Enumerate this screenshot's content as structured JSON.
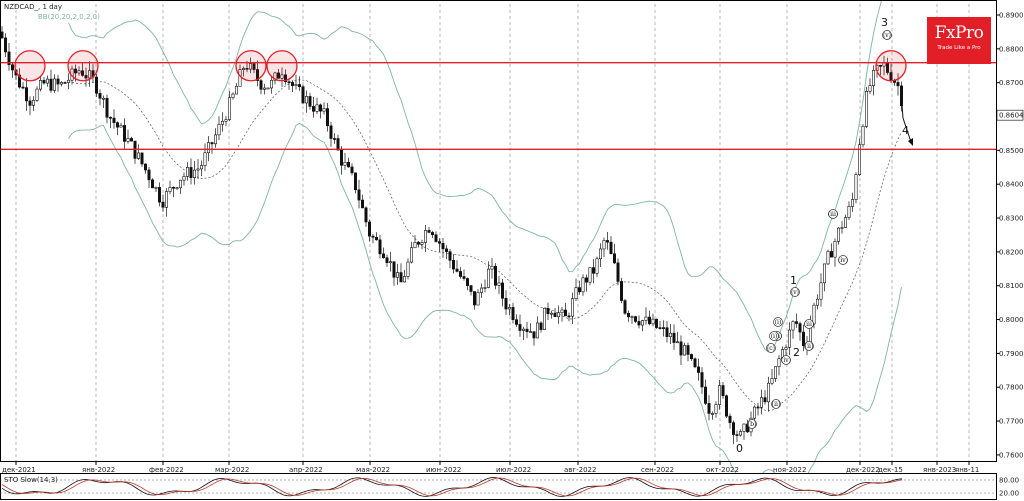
{
  "header": {
    "symbol_label": "NZDCAD_, 1 day",
    "bb_label": "BB(20,20,2,0,2,0)",
    "sto_label": "STO Slow(14,3)"
  },
  "logo": {
    "name": "FxPro",
    "tagline": "Trade Like a Pro",
    "color": "#e21f26"
  },
  "colors": {
    "bull": "#ffffff",
    "bear": "#111111",
    "band": "#7fb3a6",
    "resistance": "#e21f26",
    "ma": "#555555"
  },
  "chart_data": {
    "type": "candlestick",
    "ylim": [
      0.757,
      0.894
    ],
    "price_ticks": [
      "0.8900",
      "0.8800",
      "0.8700",
      "0.8604",
      "0.8500",
      "0.8400",
      "0.8300",
      "0.8200",
      "0.8100",
      "0.8000",
      "0.7900",
      "0.7800",
      "0.7700",
      "0.7600"
    ],
    "current_price": "0.8604",
    "date_labels": [
      "дек-2021",
      "янв-2022",
      "фев-2022",
      "мар-2022",
      "апр-2022",
      "мая-2022",
      "июн-2022",
      "июл-2022",
      "авг-2022",
      "сен-2022",
      "окт-2022",
      "ноя-2022",
      "дек-2022",
      "дек-15",
      "янв-2023",
      "янв-11"
    ],
    "levels": [
      0.8759,
      0.8503
    ],
    "wave_labels": [
      "3",
      "(v)",
      "4",
      "1",
      "(v)",
      "(iv)",
      "(iii)",
      "(i)",
      "2",
      "(iii)",
      "(ii)",
      "(iv)",
      "(iii)",
      "(ii)",
      "(i)",
      "(c)",
      "(b)",
      "0"
    ],
    "sto_ticks": [
      "80.00",
      "20.00"
    ],
    "anchors": [
      [
        0,
        0.885
      ],
      [
        15,
        0.872
      ],
      [
        30,
        0.865
      ],
      [
        45,
        0.87
      ],
      [
        60,
        0.869
      ],
      [
        80,
        0.874
      ],
      [
        95,
        0.87
      ],
      [
        110,
        0.86
      ],
      [
        130,
        0.852
      ],
      [
        150,
        0.842
      ],
      [
        162,
        0.835
      ],
      [
        180,
        0.842
      ],
      [
        200,
        0.845
      ],
      [
        215,
        0.854
      ],
      [
        232,
        0.865
      ],
      [
        245,
        0.876
      ],
      [
        260,
        0.87
      ],
      [
        270,
        0.869
      ],
      [
        282,
        0.874
      ],
      [
        295,
        0.868
      ],
      [
        310,
        0.864
      ],
      [
        325,
        0.86
      ],
      [
        340,
        0.848
      ],
      [
        355,
        0.84
      ],
      [
        370,
        0.825
      ],
      [
        385,
        0.82
      ],
      [
        400,
        0.81
      ],
      [
        415,
        0.822
      ],
      [
        430,
        0.828
      ],
      [
        445,
        0.82
      ],
      [
        460,
        0.813
      ],
      [
        475,
        0.805
      ],
      [
        490,
        0.815
      ],
      [
        505,
        0.805
      ],
      [
        520,
        0.799
      ],
      [
        535,
        0.796
      ],
      [
        550,
        0.804
      ],
      [
        565,
        0.8
      ],
      [
        580,
        0.81
      ],
      [
        595,
        0.815
      ],
      [
        605,
        0.824
      ],
      [
        615,
        0.815
      ],
      [
        625,
        0.803
      ],
      [
        640,
        0.8
      ],
      [
        655,
        0.798
      ],
      [
        670,
        0.795
      ],
      [
        685,
        0.79
      ],
      [
        700,
        0.782
      ],
      [
        710,
        0.773
      ],
      [
        720,
        0.779
      ],
      [
        730,
        0.77
      ],
      [
        740,
        0.765
      ],
      [
        750,
        0.77
      ],
      [
        760,
        0.775
      ],
      [
        770,
        0.78
      ],
      [
        780,
        0.789
      ],
      [
        795,
        0.8
      ],
      [
        805,
        0.792
      ],
      [
        815,
        0.805
      ],
      [
        828,
        0.818
      ],
      [
        840,
        0.827
      ],
      [
        852,
        0.834
      ],
      [
        860,
        0.854
      ],
      [
        868,
        0.868
      ],
      [
        876,
        0.873
      ],
      [
        884,
        0.875
      ],
      [
        892,
        0.872
      ],
      [
        900,
        0.868
      ],
      [
        904,
        0.861
      ]
    ]
  }
}
